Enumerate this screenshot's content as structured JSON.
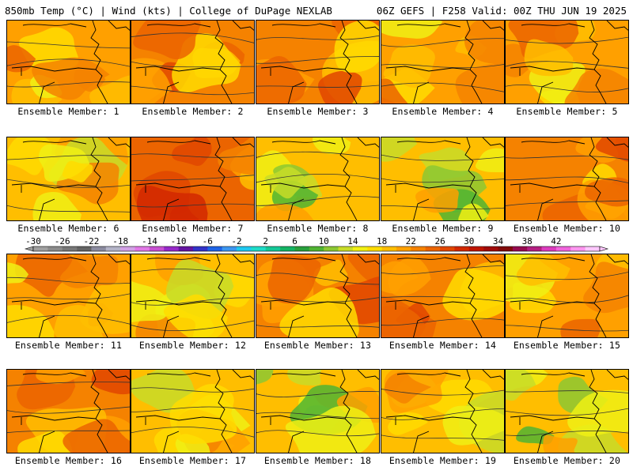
{
  "header": {
    "left": "850mb Temp (°C) | Wind (kts) | College of DuPage NEXLAB",
    "right": "06Z GEFS | F258 Valid: 00Z THU JUN 19 2025"
  },
  "colorbar": {
    "ticks": [
      "-30",
      "-26",
      "-22",
      "-18",
      "-14",
      "-10",
      "-6",
      "-2",
      "2",
      "6",
      "10",
      "14",
      "18",
      "22",
      "26",
      "30",
      "34",
      "38",
      "42"
    ],
    "colors": [
      "#a0a0a0",
      "#8c8c8c",
      "#787878",
      "#646464",
      "#8c8ca0",
      "#b4b4c8",
      "#d2a0e6",
      "#e178e6",
      "#c850d2",
      "#9628c8",
      "#6414a0",
      "#3232c8",
      "#1e64e6",
      "#3c96f0",
      "#1ec8f0",
      "#1edcc8",
      "#14c896",
      "#14b464",
      "#28a03c",
      "#50b432",
      "#8cc832",
      "#c8dc28",
      "#f0f014",
      "#ffdc00",
      "#ffbe00",
      "#ffa000",
      "#f58200",
      "#eb6400",
      "#e14600",
      "#d22800",
      "#be1400",
      "#a00a0a",
      "#820a0a",
      "#960a50",
      "#b41e82",
      "#dc3cbe",
      "#f064dc",
      "#ff96f0",
      "#ffc8ff"
    ]
  },
  "panels": [
    {
      "label": "Ensemble Member: 1",
      "theme": "warm"
    },
    {
      "label": "Ensemble Member: 2",
      "theme": "hot"
    },
    {
      "label": "Ensemble Member: 3",
      "theme": "hot"
    },
    {
      "label": "Ensemble Member: 4",
      "theme": "warm"
    },
    {
      "label": "Ensemble Member: 5",
      "theme": "warm"
    },
    {
      "label": "Ensemble Member: 6",
      "theme": "mild"
    },
    {
      "label": "Ensemble Member: 7",
      "theme": "veryhot"
    },
    {
      "label": "Ensemble Member: 8",
      "theme": "cool"
    },
    {
      "label": "Ensemble Member: 9",
      "theme": "cool"
    },
    {
      "label": "Ensemble Member: 10",
      "theme": "hot"
    },
    {
      "label": "Ensemble Member: 11",
      "theme": "warm"
    },
    {
      "label": "Ensemble Member: 12",
      "theme": "mild"
    },
    {
      "label": "Ensemble Member: 13",
      "theme": "hot"
    },
    {
      "label": "Ensemble Member: 14",
      "theme": "hot"
    },
    {
      "label": "Ensemble Member: 15",
      "theme": "warm"
    },
    {
      "label": "Ensemble Member: 16",
      "theme": "hot"
    },
    {
      "label": "Ensemble Member: 17",
      "theme": "mild"
    },
    {
      "label": "Ensemble Member: 18",
      "theme": "cool"
    },
    {
      "label": "Ensemble Member: 19",
      "theme": "mild"
    },
    {
      "label": "Ensemble Member: 20",
      "theme": "cool"
    }
  ]
}
